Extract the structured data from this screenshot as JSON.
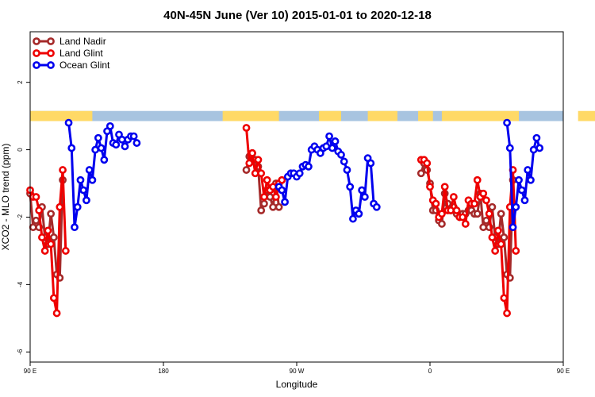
{
  "chart_data": {
    "type": "line",
    "title": "40N-45N June (Ver 10)   2015-01-01 to 2020-12-18",
    "xlabel": "Longitude",
    "ylabel": "XCO2 - MLO trend (ppm)",
    "xlim": [
      90,
      450
    ],
    "ylim": [
      -6.3,
      3.5
    ],
    "x_ticks": [
      {
        "value": 90,
        "label": "90 E"
      },
      {
        "value": 180,
        "label": "180"
      },
      {
        "value": 270,
        "label": "90 W"
      },
      {
        "value": 360,
        "label": "0"
      },
      {
        "value": 450,
        "label": "90 E"
      },
      {
        "value": 540,
        "label": "180"
      }
    ],
    "y_ticks": [
      {
        "value": -6,
        "label": "-6"
      },
      {
        "value": -4,
        "label": "-4"
      },
      {
        "value": -2,
        "label": "-2"
      },
      {
        "value": 0,
        "label": "0"
      },
      {
        "value": 2,
        "label": "2"
      }
    ],
    "legend_position": "top-left",
    "grid": false,
    "land_mask_band": {
      "y_range": [
        0.85,
        1.15
      ],
      "land_color": "#FFD966",
      "ocean_color": "#A8C4E0",
      "land_segments": [
        [
          90,
          132
        ],
        [
          220,
          258
        ],
        [
          285,
          300
        ],
        [
          318,
          338
        ],
        [
          352,
          362
        ],
        [
          368,
          420
        ],
        [
          460,
          492
        ]
      ]
    },
    "series": [
      {
        "name": "Land Nadir",
        "color": "#A52A2A",
        "points": [
          [
            90,
            -1.3
          ],
          [
            92,
            -2.3
          ],
          [
            94,
            -2.1
          ],
          [
            96,
            -2.3
          ],
          [
            98,
            -1.7
          ],
          [
            100,
            -2.6
          ],
          [
            102,
            -2.8
          ],
          [
            104,
            -1.9
          ],
          [
            106,
            -2.6
          ],
          [
            108,
            -3.7
          ],
          [
            110,
            -3.8
          ],
          [
            112,
            -0.9
          ],
          [
            236,
            -0.6
          ],
          [
            238,
            -0.2
          ],
          [
            240,
            -0.1
          ],
          [
            242,
            -0.3
          ],
          [
            244,
            -0.5
          ],
          [
            246,
            -1.8
          ],
          [
            248,
            -1.6
          ],
          [
            250,
            -1.2
          ],
          [
            252,
            -1.4
          ],
          [
            254,
            -1.7
          ],
          [
            256,
            -1.0
          ],
          [
            258,
            -1.7
          ],
          [
            354,
            -0.7
          ],
          [
            356,
            -0.4
          ],
          [
            358,
            -0.6
          ],
          [
            360,
            -1.0
          ],
          [
            362,
            -1.8
          ],
          [
            364,
            -1.8
          ],
          [
            366,
            -2.1
          ],
          [
            368,
            -2.2
          ],
          [
            370,
            -1.3
          ],
          [
            372,
            -1.6
          ],
          [
            374,
            -1.8
          ],
          [
            376,
            -1.7
          ],
          [
            378,
            -1.9
          ],
          [
            380,
            -2.0
          ],
          [
            382,
            -1.9
          ],
          [
            384,
            -1.9
          ],
          [
            386,
            -1.8
          ],
          [
            388,
            -1.8
          ],
          [
            390,
            -1.9
          ],
          [
            392,
            -1.9
          ],
          [
            394,
            -1.3
          ],
          [
            396,
            -2.3
          ],
          [
            398,
            -2.1
          ],
          [
            400,
            -2.3
          ],
          [
            402,
            -1.7
          ],
          [
            404,
            -2.6
          ],
          [
            406,
            -2.8
          ],
          [
            408,
            -1.9
          ],
          [
            410,
            -2.6
          ],
          [
            412,
            -3.7
          ],
          [
            414,
            -3.8
          ],
          [
            416,
            -0.9
          ]
        ]
      },
      {
        "name": "Land Glint",
        "color": "#EE0000",
        "points": [
          [
            90,
            -1.2
          ],
          [
            92,
            -1.4
          ],
          [
            94,
            -1.4
          ],
          [
            96,
            -1.8
          ],
          [
            98,
            -2.6
          ],
          [
            100,
            -3.0
          ],
          [
            102,
            -2.4
          ],
          [
            104,
            -2.8
          ],
          [
            106,
            -4.4
          ],
          [
            108,
            -4.85
          ],
          [
            110,
            -1.7
          ],
          [
            112,
            -0.6
          ],
          [
            114,
            -3.0
          ],
          [
            236,
            0.65
          ],
          [
            238,
            -0.4
          ],
          [
            240,
            -0.1
          ],
          [
            242,
            -0.7
          ],
          [
            244,
            -0.3
          ],
          [
            246,
            -0.7
          ],
          [
            248,
            -1.4
          ],
          [
            250,
            -0.9
          ],
          [
            252,
            -1.2
          ],
          [
            254,
            -1.1
          ],
          [
            256,
            -1.4
          ],
          [
            258,
            -1.0
          ],
          [
            260,
            -0.9
          ],
          [
            354,
            -0.3
          ],
          [
            356,
            -0.3
          ],
          [
            358,
            -0.4
          ],
          [
            360,
            -1.1
          ],
          [
            362,
            -1.5
          ],
          [
            364,
            -1.6
          ],
          [
            366,
            -2.0
          ],
          [
            368,
            -1.9
          ],
          [
            370,
            -1.1
          ],
          [
            372,
            -1.8
          ],
          [
            374,
            -1.8
          ],
          [
            376,
            -1.4
          ],
          [
            378,
            -1.8
          ],
          [
            380,
            -2.0
          ],
          [
            382,
            -2.0
          ],
          [
            384,
            -2.2
          ],
          [
            386,
            -1.5
          ],
          [
            388,
            -1.6
          ],
          [
            390,
            -1.6
          ],
          [
            392,
            -0.9
          ],
          [
            394,
            -1.4
          ],
          [
            396,
            -1.3
          ],
          [
            398,
            -1.5
          ],
          [
            400,
            -1.9
          ],
          [
            402,
            -2.6
          ],
          [
            404,
            -3.0
          ],
          [
            406,
            -2.4
          ],
          [
            408,
            -2.8
          ],
          [
            410,
            -4.4
          ],
          [
            412,
            -4.85
          ],
          [
            414,
            -1.7
          ],
          [
            416,
            -0.6
          ],
          [
            418,
            -3.0
          ]
        ]
      },
      {
        "name": "Ocean Glint",
        "color": "#0000EE",
        "points": [
          [
            116,
            0.8
          ],
          [
            118,
            0.05
          ],
          [
            120,
            -2.3
          ],
          [
            122,
            -1.7
          ],
          [
            124,
            -0.9
          ],
          [
            126,
            -1.2
          ],
          [
            128,
            -1.5
          ],
          [
            130,
            -0.6
          ],
          [
            132,
            -0.9
          ],
          [
            134,
            0.0
          ],
          [
            136,
            0.35
          ],
          [
            138,
            0.05
          ],
          [
            140,
            -0.3
          ],
          [
            142,
            0.55
          ],
          [
            144,
            0.7
          ],
          [
            146,
            0.2
          ],
          [
            148,
            0.15
          ],
          [
            150,
            0.45
          ],
          [
            152,
            0.3
          ],
          [
            154,
            0.1
          ],
          [
            156,
            0.3
          ],
          [
            158,
            0.4
          ],
          [
            160,
            0.4
          ],
          [
            162,
            0.2
          ],
          [
            258,
            -1.1
          ],
          [
            260,
            -1.2
          ],
          [
            262,
            -1.55
          ],
          [
            264,
            -0.8
          ],
          [
            266,
            -0.7
          ],
          [
            268,
            -0.7
          ],
          [
            270,
            -0.8
          ],
          [
            272,
            -0.7
          ],
          [
            274,
            -0.5
          ],
          [
            276,
            -0.45
          ],
          [
            278,
            -0.5
          ],
          [
            280,
            0.0
          ],
          [
            282,
            0.1
          ],
          [
            284,
            0.0
          ],
          [
            286,
            -0.1
          ],
          [
            288,
            0.05
          ],
          [
            290,
            0.1
          ],
          [
            292,
            0.4
          ],
          [
            294,
            0.05
          ],
          [
            296,
            0.25
          ],
          [
            298,
            -0.05
          ],
          [
            300,
            -0.15
          ],
          [
            302,
            -0.35
          ],
          [
            304,
            -0.6
          ],
          [
            306,
            -1.1
          ],
          [
            308,
            -2.05
          ],
          [
            310,
            -1.8
          ],
          [
            312,
            -1.9
          ],
          [
            314,
            -1.2
          ],
          [
            316,
            -1.4
          ],
          [
            318,
            -0.25
          ],
          [
            320,
            -0.4
          ],
          [
            322,
            -1.6
          ],
          [
            324,
            -1.7
          ],
          [
            412,
            0.8
          ],
          [
            414,
            0.05
          ],
          [
            416,
            -2.3
          ],
          [
            418,
            -1.7
          ],
          [
            420,
            -0.9
          ],
          [
            422,
            -1.2
          ],
          [
            424,
            -1.5
          ],
          [
            426,
            -0.6
          ],
          [
            428,
            -0.9
          ],
          [
            430,
            0.0
          ],
          [
            432,
            0.35
          ],
          [
            434,
            0.05
          ]
        ]
      }
    ]
  }
}
